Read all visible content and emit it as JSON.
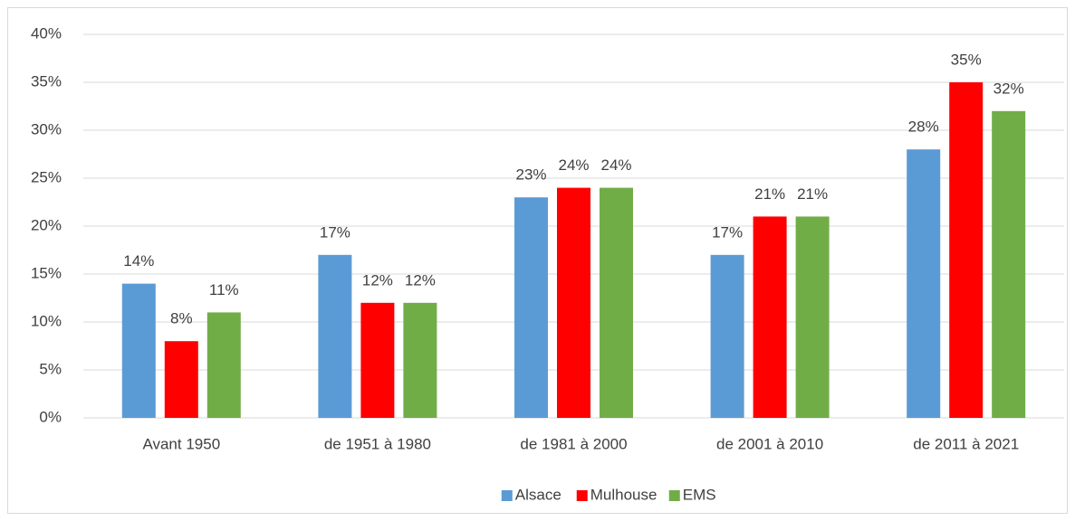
{
  "chart_data": {
    "type": "bar",
    "categories": [
      "Avant 1950",
      "de 1951 à 1980",
      "de 1981 à 2000",
      "de 2001 à 2010",
      "de 2011 à 2021"
    ],
    "series": [
      {
        "name": "Alsace",
        "color": "#5b9bd5",
        "values": [
          14,
          17,
          23,
          17,
          28
        ],
        "value_labels": [
          "14%",
          "17%",
          "23%",
          "17%",
          "28%"
        ]
      },
      {
        "name": "Mulhouse",
        "color": "#ff0000",
        "values": [
          8,
          12,
          24,
          21,
          35
        ],
        "value_labels": [
          "8%",
          "12%",
          "24%",
          "21%",
          "35%"
        ]
      },
      {
        "name": "EMS",
        "color": "#70ad47",
        "values": [
          11,
          12,
          24,
          21,
          32
        ],
        "value_labels": [
          "11%",
          "12%",
          "24%",
          "21%",
          "32%"
        ]
      }
    ],
    "ylim": [
      0,
      40
    ],
    "yticks": [
      {
        "value": 0,
        "label": "0%"
      },
      {
        "value": 5,
        "label": "5%"
      },
      {
        "value": 10,
        "label": "10%"
      },
      {
        "value": 15,
        "label": "15%"
      },
      {
        "value": 20,
        "label": "20%"
      },
      {
        "value": 25,
        "label": "25%"
      },
      {
        "value": 30,
        "label": "30%"
      },
      {
        "value": 35,
        "label": "35%"
      },
      {
        "value": 40,
        "label": "40%"
      }
    ],
    "grid": true,
    "legend": "bottom"
  }
}
